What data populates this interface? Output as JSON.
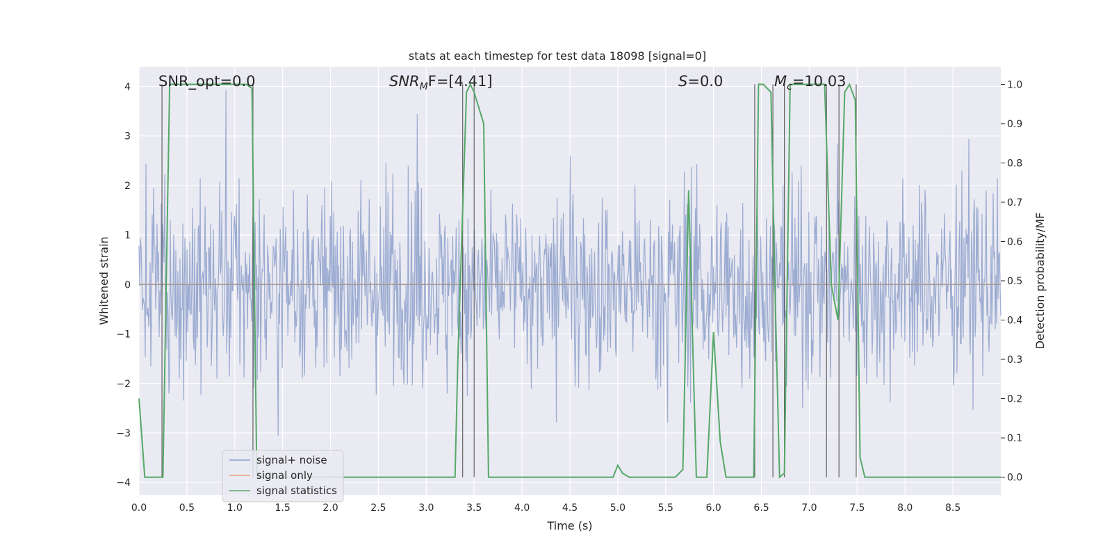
{
  "chart_data": {
    "type": "line",
    "title": "stats at each timestep for test data 18098 [signal=0]",
    "xlabel": "Time (s)",
    "ylabel": "Whitened strain",
    "ylabel_right": "Detection probability/MF",
    "xlim": [
      0,
      9.0
    ],
    "ylim": [
      -4.25,
      4.4
    ],
    "ylim_right": [
      -0.045,
      1.045
    ],
    "x_ticks": [
      0.0,
      0.5,
      1.0,
      1.5,
      2.0,
      2.5,
      3.0,
      3.5,
      4.0,
      4.5,
      5.0,
      5.5,
      6.0,
      6.5,
      7.0,
      7.5,
      8.0,
      8.5
    ],
    "x_tick_labels": [
      "0.0",
      "0.5",
      "1.0",
      "1.5",
      "2.0",
      "2.5",
      "3.0",
      "3.5",
      "4.0",
      "4.5",
      "5.0",
      "5.5",
      "6.0",
      "6.5",
      "7.0",
      "7.5",
      "8.0",
      "8.5"
    ],
    "y_ticks": [
      4,
      3,
      2,
      1,
      0,
      -1,
      -2,
      -3,
      -4
    ],
    "y_tick_labels": [
      "4",
      "3",
      "2",
      "1",
      "0",
      "−1",
      "−2",
      "−3",
      "−4"
    ],
    "y_right_ticks": [
      1.0,
      0.9,
      0.8,
      0.7,
      0.6,
      0.5,
      0.4,
      0.3,
      0.2,
      0.1,
      0.0
    ],
    "y_right_tick_labels": [
      "1.0",
      "0.9",
      "0.8",
      "0.7",
      "0.6",
      "0.5",
      "0.4",
      "0.3",
      "0.2",
      "0.1",
      "0.0"
    ],
    "grid": true,
    "annotations": {
      "snr_opt": "SNR_opt=0.0",
      "snr_mf_main": "SNR",
      "snr_mf_sub": "M",
      "snr_mf_rest": "F=[4.41]",
      "s_main": "S",
      "s_rest": "=0.0",
      "mc_main": "M",
      "mc_sub": "c",
      "mc_rest": "=10.03"
    },
    "legend": {
      "placement": "lower-left",
      "entries": [
        "signal+ noise",
        "signal only",
        "signal statistics"
      ]
    },
    "series": [
      {
        "name": "signal+ noise",
        "color": "#8da0cb",
        "description": "whitened strain noise, amplitude roughly within ±2 with spikes to ±3.5"
      },
      {
        "name": "signal only",
        "color": "#e5a07e",
        "values": "zero everywhere (signal=0)"
      },
      {
        "name": "signal statistics",
        "color": "#55a868",
        "axis": "right",
        "x": [
          0.0,
          0.06,
          0.15,
          0.25,
          0.32,
          0.38,
          1.0,
          1.12,
          1.18,
          1.23,
          1.3,
          3.3,
          3.33,
          3.42,
          3.46,
          3.5,
          3.6,
          3.65,
          4.95,
          5.0,
          5.05,
          5.12,
          5.6,
          5.68,
          5.74,
          5.82,
          5.87,
          5.93,
          6.0,
          6.07,
          6.13,
          6.2,
          6.3,
          6.42,
          6.47,
          6.52,
          6.6,
          6.64,
          6.69,
          6.74,
          6.8,
          7.16,
          7.23,
          7.3,
          7.37,
          7.42,
          7.48,
          7.53,
          7.58,
          7.8,
          8.4,
          8.45,
          8.6,
          9.0
        ],
        "values": [
          0.2,
          0.0,
          0.0,
          0.0,
          1.0,
          1.0,
          1.0,
          1.0,
          0.99,
          0.0,
          0.0,
          0.0,
          0.3,
          0.98,
          1.0,
          0.98,
          0.9,
          0.0,
          0.0,
          0.03,
          0.01,
          0.0,
          0.0,
          0.02,
          0.73,
          0.0,
          0.0,
          0.0,
          0.37,
          0.09,
          0.0,
          0.0,
          0.0,
          0.0,
          1.0,
          1.0,
          0.98,
          0.5,
          0.0,
          0.01,
          1.0,
          1.0,
          0.49,
          0.4,
          0.98,
          1.0,
          0.96,
          0.05,
          0.0,
          0.0,
          0.0,
          0.0,
          0.0,
          0.0
        ]
      }
    ],
    "vertical_markers": [
      0.24,
      1.19,
      3.38,
      3.5,
      6.43,
      6.62,
      6.74,
      7.18,
      7.31,
      7.49
    ]
  }
}
